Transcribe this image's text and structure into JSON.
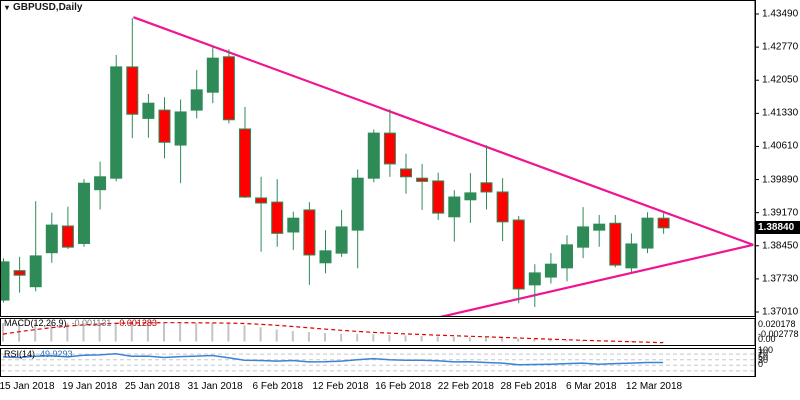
{
  "window": {
    "symbol_label": "GBPUSD,Daily",
    "dropdown_icon": "▾"
  },
  "chart_data": {
    "type": "candlestick",
    "title": "GBPUSD,Daily",
    "symbol": "GBPUSD",
    "timeframe": "Daily",
    "grid": "off",
    "price_axis_labels": [
      "1.43490",
      "1.42770",
      "1.42050",
      "1.41330",
      "1.40610",
      "1.39890",
      "1.39170",
      "1.38450",
      "1.37730",
      "1.37010"
    ],
    "price_axis_range": [
      1.3701,
      1.4349
    ],
    "current_price": "1.38840",
    "x_labels": [
      "15 Jan 2018",
      "19 Jan 2018",
      "25 Jan 2018",
      "31 Jan 2018",
      "6 Feb 2018",
      "12 Feb 2018",
      "16 Feb 2018",
      "22 Feb 2018",
      "28 Feb 2018",
      "6 Mar 2018",
      "12 Mar 2018"
    ],
    "candles": [
      {
        "d": "15 Jan 2018",
        "o": 1.3727,
        "h": 1.3818,
        "l": 1.3722,
        "c": 1.381
      },
      {
        "d": "16 Jan 2018",
        "o": 1.3791,
        "h": 1.3821,
        "l": 1.3743,
        "c": 1.3781
      },
      {
        "d": "17 Jan 2018",
        "o": 1.3756,
        "h": 1.3942,
        "l": 1.3746,
        "c": 1.3823
      },
      {
        "d": "18 Jan 2018",
        "o": 1.383,
        "h": 1.3917,
        "l": 1.3808,
        "c": 1.389
      },
      {
        "d": "19 Jan 2018",
        "o": 1.3888,
        "h": 1.393,
        "l": 1.3838,
        "c": 1.3842
      },
      {
        "d": "22 Jan 2018",
        "o": 1.385,
        "h": 1.399,
        "l": 1.3843,
        "c": 1.3981
      },
      {
        "d": "23 Jan 2018",
        "o": 1.3967,
        "h": 1.4028,
        "l": 1.3924,
        "c": 1.3995
      },
      {
        "d": "24 Jan 2018",
        "o": 1.3992,
        "h": 1.426,
        "l": 1.3985,
        "c": 1.4234
      },
      {
        "d": "25 Jan 2018",
        "o": 1.4234,
        "h": 1.434,
        "l": 1.4079,
        "c": 1.4131
      },
      {
        "d": "26 Jan 2018",
        "o": 1.4122,
        "h": 1.4175,
        "l": 1.408,
        "c": 1.4155
      },
      {
        "d": "29 Jan 2018",
        "o": 1.414,
        "h": 1.4168,
        "l": 1.4035,
        "c": 1.407
      },
      {
        "d": "30 Jan 2018",
        "o": 1.4064,
        "h": 1.4163,
        "l": 1.3981,
        "c": 1.4136
      },
      {
        "d": "31 Jan 2018",
        "o": 1.414,
        "h": 1.4227,
        "l": 1.4122,
        "c": 1.4184
      },
      {
        "d": "1 Feb 2018",
        "o": 1.4179,
        "h": 1.4279,
        "l": 1.4155,
        "c": 1.4253
      },
      {
        "d": "2 Feb 2018",
        "o": 1.4256,
        "h": 1.4272,
        "l": 1.4111,
        "c": 1.4119
      },
      {
        "d": "5 Feb 2018",
        "o": 1.4099,
        "h": 1.4147,
        "l": 1.3949,
        "c": 1.3951
      },
      {
        "d": "6 Feb 2018",
        "o": 1.3949,
        "h": 1.3995,
        "l": 1.3832,
        "c": 1.3938
      },
      {
        "d": "7 Feb 2018",
        "o": 1.394,
        "h": 1.399,
        "l": 1.3843,
        "c": 1.3872
      },
      {
        "d": "8 Feb 2018",
        "o": 1.3875,
        "h": 1.3919,
        "l": 1.3836,
        "c": 1.3905
      },
      {
        "d": "9 Feb 2018",
        "o": 1.3923,
        "h": 1.394,
        "l": 1.376,
        "c": 1.3825
      },
      {
        "d": "12 Feb 2018",
        "o": 1.3808,
        "h": 1.3879,
        "l": 1.3785,
        "c": 1.3834
      },
      {
        "d": "13 Feb 2018",
        "o": 1.3829,
        "h": 1.3923,
        "l": 1.3821,
        "c": 1.3886
      },
      {
        "d": "14 Feb 2018",
        "o": 1.3879,
        "h": 1.4011,
        "l": 1.3796,
        "c": 1.3992
      },
      {
        "d": "15 Feb 2018",
        "o": 1.3992,
        "h": 1.4098,
        "l": 1.3983,
        "c": 1.409
      },
      {
        "d": "16 Feb 2018",
        "o": 1.409,
        "h": 1.4142,
        "l": 1.3995,
        "c": 1.4023
      },
      {
        "d": "19 Feb 2018",
        "o": 1.4012,
        "h": 1.4045,
        "l": 1.3958,
        "c": 1.3995
      },
      {
        "d": "20 Feb 2018",
        "o": 1.3992,
        "h": 1.4023,
        "l": 1.3923,
        "c": 1.3985
      },
      {
        "d": "21 Feb 2018",
        "o": 1.3986,
        "h": 1.4004,
        "l": 1.3901,
        "c": 1.3916
      },
      {
        "d": "22 Feb 2018",
        "o": 1.3908,
        "h": 1.3966,
        "l": 1.3854,
        "c": 1.3951
      },
      {
        "d": "23 Feb 2018",
        "o": 1.3945,
        "h": 1.4003,
        "l": 1.3895,
        "c": 1.396
      },
      {
        "d": "26 Feb 2018",
        "o": 1.3982,
        "h": 1.4064,
        "l": 1.3924,
        "c": 1.3962
      },
      {
        "d": "27 Feb 2018",
        "o": 1.3962,
        "h": 1.3992,
        "l": 1.3855,
        "c": 1.3897
      },
      {
        "d": "28 Feb 2018",
        "o": 1.3901,
        "h": 1.391,
        "l": 1.372,
        "c": 1.3751
      },
      {
        "d": "1 Mar 2018",
        "o": 1.376,
        "h": 1.3805,
        "l": 1.3712,
        "c": 1.3786
      },
      {
        "d": "2 Mar 2018",
        "o": 1.3777,
        "h": 1.3829,
        "l": 1.3763,
        "c": 1.3805
      },
      {
        "d": "5 Mar 2018",
        "o": 1.3797,
        "h": 1.3868,
        "l": 1.3768,
        "c": 1.3847
      },
      {
        "d": "6 Mar 2018",
        "o": 1.3842,
        "h": 1.3929,
        "l": 1.3818,
        "c": 1.3886
      },
      {
        "d": "7 Mar 2018",
        "o": 1.3879,
        "h": 1.3912,
        "l": 1.3843,
        "c": 1.3892
      },
      {
        "d": "8 Mar 2018",
        "o": 1.3894,
        "h": 1.3912,
        "l": 1.3798,
        "c": 1.3803
      },
      {
        "d": "9 Mar 2018",
        "o": 1.3797,
        "h": 1.3872,
        "l": 1.3786,
        "c": 1.3849
      },
      {
        "d": "12 Mar 2018",
        "o": 1.384,
        "h": 1.3918,
        "l": 1.3829,
        "c": 1.3905
      },
      {
        "d": "13 Mar 2018",
        "o": 1.3905,
        "h": 1.3916,
        "l": 1.3871,
        "c": 1.3884
      }
    ],
    "trendlines": [
      {
        "name": "descending-resistance",
        "from": {
          "candle": 8.1,
          "price": 1.4342
        },
        "to": {
          "candle": 46.6,
          "price": 1.3847
        }
      },
      {
        "name": "ascending-support",
        "from": {
          "candle": 26.9,
          "price": 1.3688
        },
        "to": {
          "candle": 46.6,
          "price": 1.3847
        }
      }
    ],
    "indicators": {
      "macd": {
        "name": "MACD(12,26,9)",
        "value_main": "-0.001131",
        "value_signal": "-0.001283",
        "axis_labels": [
          "0.020178",
          "-0.002778",
          "0.00"
        ],
        "histogram": [
          0.0197,
          0.0199,
          0.02,
          0.02,
          0.0198,
          0.02,
          0.0201,
          0.0202,
          0.02,
          0.0198,
          0.0196,
          0.0196,
          0.0198,
          0.0199,
          0.0191,
          0.0174,
          0.0152,
          0.0129,
          0.0113,
          0.0101,
          0.0091,
          0.0083,
          0.008,
          0.0078,
          0.0072,
          0.0066,
          0.006,
          0.0055,
          0.005,
          0.0046,
          0.0042,
          0.0038,
          0.0032,
          0.0026,
          0.0022,
          0.0018,
          0.0015,
          0.0012,
          0.0008,
          0.0004,
          0.0001,
          -0.0011
        ],
        "signal": [
          0.008,
          0.0105,
          0.0128,
          0.0148,
          0.0165,
          0.0178,
          0.0188,
          0.0195,
          0.0199,
          0.0201,
          0.0202,
          0.0202,
          0.0201,
          0.02,
          0.0198,
          0.0193,
          0.0185,
          0.0174,
          0.0161,
          0.0147,
          0.0133,
          0.012,
          0.0108,
          0.0098,
          0.009,
          0.0082,
          0.0075,
          0.0068,
          0.0062,
          0.0056,
          0.005,
          0.0044,
          0.0038,
          0.0031,
          0.0025,
          0.0019,
          0.0013,
          0.0008,
          0.0003,
          -0.0002,
          -0.0007,
          -0.0013
        ]
      },
      "rsi": {
        "name": "RSI(14)",
        "value": "49.9293",
        "axis_labels": [
          "100",
          "70",
          "50",
          "30",
          "0"
        ],
        "grid_levels": [
          80,
          60,
          40,
          20
        ],
        "values": [
          70,
          68,
          72,
          74,
          70,
          76,
          77,
          81,
          72,
          73,
          68,
          71,
          73,
          75,
          67,
          58,
          57,
          55,
          57,
          52,
          53,
          55,
          60,
          64,
          60,
          58,
          58,
          56,
          52,
          53,
          50,
          48,
          42,
          43,
          44,
          46,
          48,
          44,
          46,
          48,
          50,
          49.93
        ]
      }
    }
  },
  "colors": {
    "candle_up": "#2E8B57",
    "candle_down": "#FF0000",
    "candle_outline": "#2E8B57",
    "trendline": "#F01493",
    "macd_histogram": "#C4C4C4",
    "macd_signal": "#E00000",
    "rsi_line": "#3C82D7",
    "grid_dash": "#C8C8C8",
    "border": "#000000",
    "price_tag_bg": "#000000",
    "price_tag_text": "#FFFFFF"
  }
}
